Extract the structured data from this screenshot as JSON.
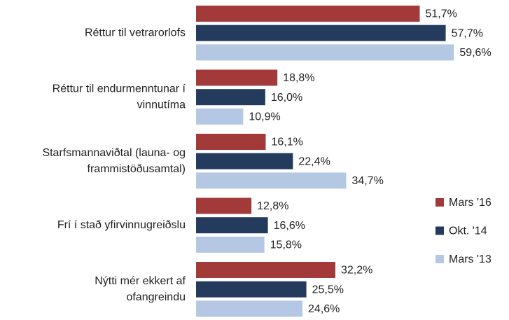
{
  "chart_data": {
    "type": "hbar",
    "categories": [
      [
        "Réttur til vetrarorlofs"
      ],
      [
        "Réttur til endurmenntunar í",
        "vinnutíma"
      ],
      [
        "Starfsmannaviðtal (launa- og",
        "frammistöðusamtal)"
      ],
      [
        "Frí í stað yfirvinnugreiðslu"
      ],
      [
        "Nýtti mér ekkert af",
        "ofangreindu"
      ]
    ],
    "series": [
      {
        "name": "Mars '16",
        "color": "#a33a3a",
        "values": [
          51.7,
          18.8,
          16.1,
          12.8,
          32.2
        ],
        "value_labels": [
          "51,7%",
          "18,8%",
          "16,1%",
          "12,8%",
          "32,2%"
        ]
      },
      {
        "name": "Okt. '14",
        "color": "#243b5e",
        "values": [
          57.7,
          16.0,
          22.4,
          16.6,
          25.5
        ],
        "value_labels": [
          "57,7%",
          "16,0%",
          "22,4%",
          "16,6%",
          "25,5%"
        ]
      },
      {
        "name": "Mars '13",
        "color": "#b4c7e3",
        "values": [
          59.6,
          10.9,
          34.7,
          15.8,
          24.6
        ],
        "value_labels": [
          "59,6%",
          "10,9%",
          "34,7%",
          "15,8%",
          "24,6%"
        ]
      }
    ],
    "xlim": [
      0,
      70
    ],
    "legend": "right"
  }
}
